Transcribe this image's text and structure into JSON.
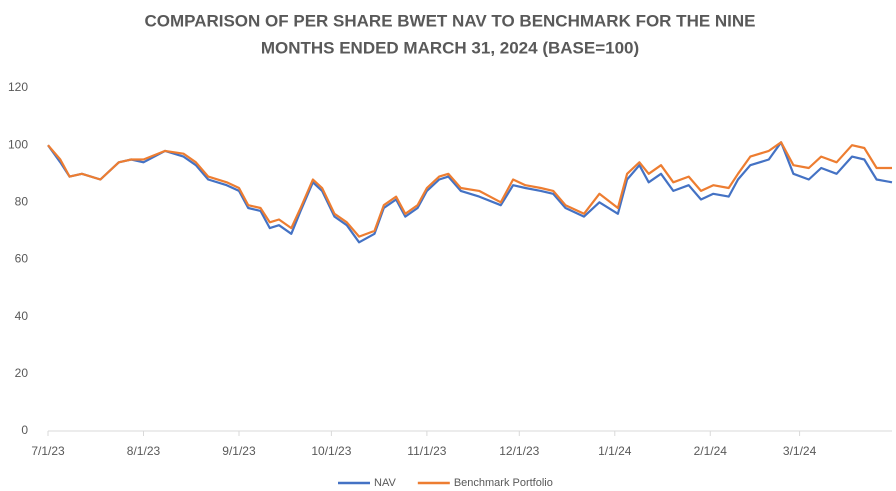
{
  "chart_data": {
    "type": "line",
    "title": [
      "COMPARISON OF PER SHARE BWET NAV TO BENCHMARK FOR THE NINE",
      "MONTHS ENDED MARCH 31, 2024 (BASE=100)"
    ],
    "x": [
      "7/1/23",
      "7/5/23",
      "7/8/23",
      "7/12/23",
      "7/18/23",
      "7/24/23",
      "7/28/23",
      "8/1/23",
      "8/8/23",
      "8/14/23",
      "8/18/23",
      "8/22/23",
      "8/28/23",
      "9/1/23",
      "9/4/23",
      "9/8/23",
      "9/11/23",
      "9/14/23",
      "9/18/23",
      "9/21/23",
      "9/25/23",
      "9/28/23",
      "10/2/23",
      "10/6/23",
      "10/10/23",
      "10/15/23",
      "10/18/23",
      "10/22/23",
      "10/25/23",
      "10/29/23",
      "11/1/23",
      "11/5/23",
      "11/8/23",
      "11/12/23",
      "11/18/23",
      "11/25/23",
      "11/29/23",
      "12/3/23",
      "12/8/23",
      "12/12/23",
      "12/16/23",
      "12/22/23",
      "12/27/23",
      "1/2/24",
      "1/5/24",
      "1/9/24",
      "1/12/24",
      "1/16/24",
      "1/20/24",
      "1/25/24",
      "1/29/24",
      "2/2/24",
      "2/7/24",
      "2/10/24",
      "2/14/24",
      "2/20/24",
      "2/24/24",
      "2/28/24",
      "3/4/24",
      "3/8/24",
      "3/13/24",
      "3/18/24",
      "3/22/24",
      "3/26/24",
      "3/31/24"
    ],
    "series": [
      {
        "name": "NAV",
        "color": "#4472c4",
        "values": [
          100,
          94,
          89,
          90,
          88,
          94,
          95,
          94,
          98,
          96,
          93,
          88,
          86,
          84,
          78,
          77,
          71,
          72,
          69,
          77,
          87,
          84,
          75,
          72,
          66,
          69,
          78,
          81,
          75,
          78,
          84,
          88,
          89,
          84,
          82,
          79,
          86,
          85,
          84,
          83,
          78,
          75,
          80,
          76,
          88,
          93,
          87,
          90,
          84,
          86,
          81,
          83,
          82,
          88,
          93,
          95,
          101,
          90,
          88,
          92,
          90,
          96,
          95,
          88,
          87
        ]
      },
      {
        "name": "Benchmark Portfolio",
        "color": "#ed7d31",
        "values": [
          100,
          95,
          89,
          90,
          88,
          94,
          95,
          95,
          98,
          97,
          94,
          89,
          87,
          85,
          79,
          78,
          73,
          74,
          71,
          78,
          88,
          85,
          76,
          73,
          68,
          70,
          79,
          82,
          76,
          79,
          85,
          89,
          90,
          85,
          84,
          80,
          88,
          86,
          85,
          84,
          79,
          76,
          83,
          78,
          90,
          94,
          90,
          93,
          87,
          89,
          84,
          86,
          85,
          90,
          96,
          98,
          101,
          93,
          92,
          96,
          94,
          100,
          99,
          92,
          92
        ]
      }
    ],
    "xlim": [
      "7/1/23",
      "3/31/24"
    ],
    "xticks": [
      "7/1/23",
      "8/1/23",
      "9/1/23",
      "10/1/23",
      "11/1/23",
      "12/1/23",
      "1/1/24",
      "2/1/24",
      "3/1/24"
    ],
    "ylim": [
      0,
      120
    ],
    "yticks": [
      0,
      20,
      40,
      60,
      80,
      100,
      120
    ],
    "grid": false
  }
}
